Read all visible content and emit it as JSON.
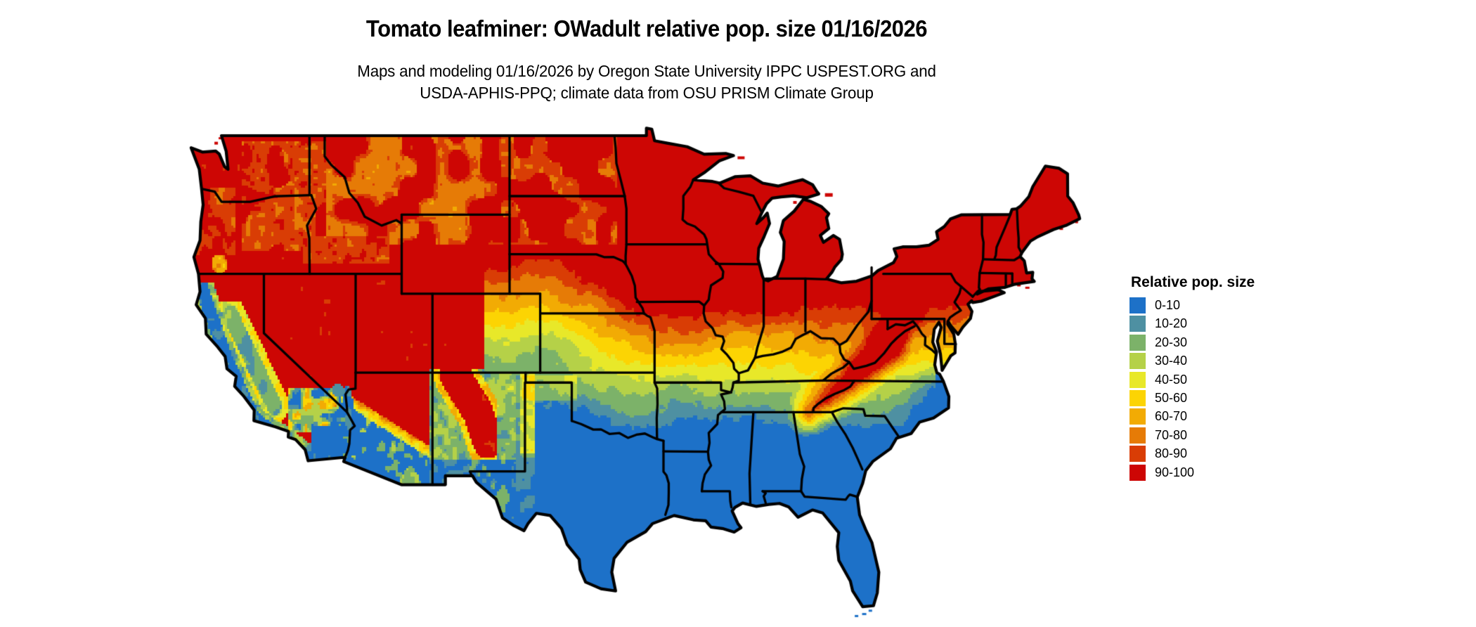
{
  "title": "Tomato leafminer: OWadult relative pop. size 01/16/2026",
  "subtitle": {
    "line1": "Maps and modeling 01/16/2026 by Oregon State University IPPC USPEST.ORG and",
    "line2": "USDA-APHIS-PPQ; climate data from OSU PRISM Climate Group"
  },
  "legend": {
    "title": "Relative pop. size",
    "classes": [
      {
        "label": "0-10",
        "color": "#1d71c8"
      },
      {
        "label": "10-20",
        "color": "#4e90a2"
      },
      {
        "label": "20-30",
        "color": "#7cb269"
      },
      {
        "label": "30-40",
        "color": "#b5d148"
      },
      {
        "label": "40-50",
        "color": "#e8e829"
      },
      {
        "label": "50-60",
        "color": "#fcd403"
      },
      {
        "label": "60-70",
        "color": "#f2ab04"
      },
      {
        "label": "70-80",
        "color": "#e67b06"
      },
      {
        "label": "80-90",
        "color": "#d93d05"
      },
      {
        "label": "90-100",
        "color": "#cd0604"
      }
    ]
  },
  "map": {
    "outline_color": "#000000",
    "water_color": "#ffffff",
    "background_color": "#ffffff"
  }
}
